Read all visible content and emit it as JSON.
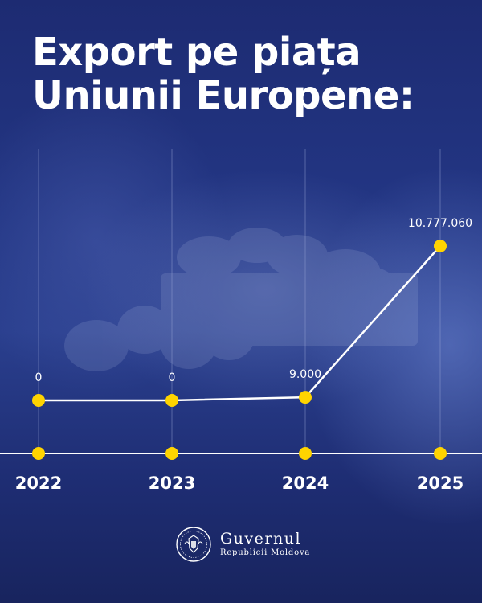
{
  "title": {
    "line1": "Export pe piața",
    "line2": "Uniunii Europene:"
  },
  "chart_data": {
    "type": "line",
    "categories": [
      "2022",
      "2023",
      "2024",
      "2025"
    ],
    "values": [
      0,
      0,
      9000,
      10777060
    ],
    "data_labels": [
      "0",
      "0",
      "9.000",
      "10.777.060"
    ],
    "colors": {
      "line": "#ffffff",
      "marker": "#ffd400",
      "gridline": "#9aa6d6",
      "label": "#ffffff"
    }
  },
  "footer": {
    "org_name": "Guvernul",
    "org_sub": "Republicii Moldova",
    "emblem_icon": "coat-of-arms-seal-icon"
  }
}
